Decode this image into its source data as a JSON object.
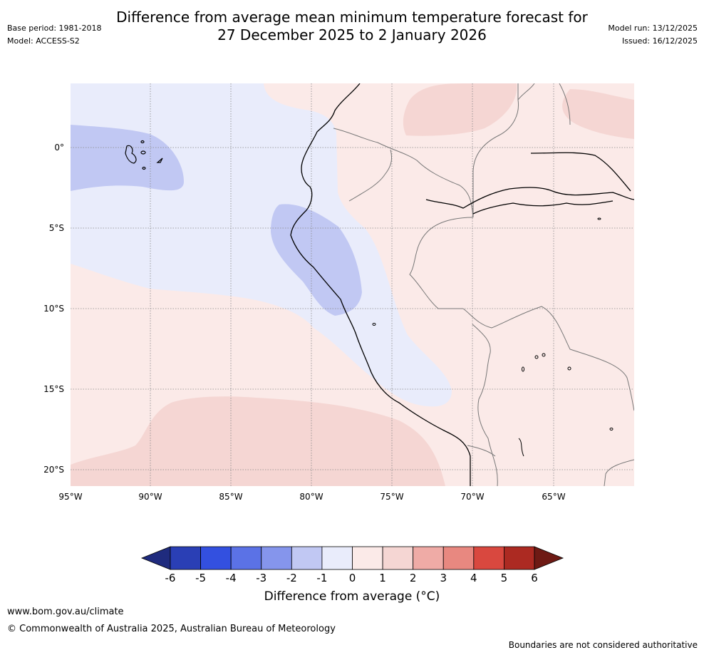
{
  "title_line1": "Difference from average mean minimum temperature forecast for",
  "title_line2": "27 December 2025 to 2 January 2026",
  "meta_left": {
    "base_period": "Base period: 1981-2018",
    "model": "Model: ACCESS-S2"
  },
  "meta_right": {
    "model_run": "Model run: 13/12/2025",
    "issued": "Issued: 16/12/2025"
  },
  "map": {
    "lon_labels": [
      "95°W",
      "90°W",
      "85°W",
      "80°W",
      "75°W",
      "70°W",
      "65°W"
    ],
    "lat_labels": [
      "0°",
      "5°S",
      "10°S",
      "15°S",
      "20°S"
    ],
    "colors": {
      "neg1_0": "#e9ecfb",
      "neg2_neg1": "#c1c8f3",
      "pos0_1": "#fbeae8",
      "pos1_2": "#f5d6d3"
    }
  },
  "colorbar": {
    "label": "Difference from average (°C)",
    "ticks": [
      "-6",
      "-5",
      "-4",
      "-3",
      "-2",
      "-1",
      "0",
      "1",
      "2",
      "3",
      "4",
      "5",
      "6"
    ],
    "colors": [
      "#1f2b7e",
      "#2a3fb5",
      "#3350e0",
      "#5b72e6",
      "#8595ec",
      "#c1c8f3",
      "#e9ecfb",
      "#fbeae8",
      "#f5d6d3",
      "#efaba6",
      "#e88880",
      "#d9483f",
      "#ac2a22",
      "#6e1a14"
    ]
  },
  "footer": {
    "url": "www.bom.gov.au/climate",
    "copyright": "© Commonwealth of Australia 2025, Australian Bureau of Meteorology",
    "disclaimer": "Boundaries are not considered authoritative"
  }
}
